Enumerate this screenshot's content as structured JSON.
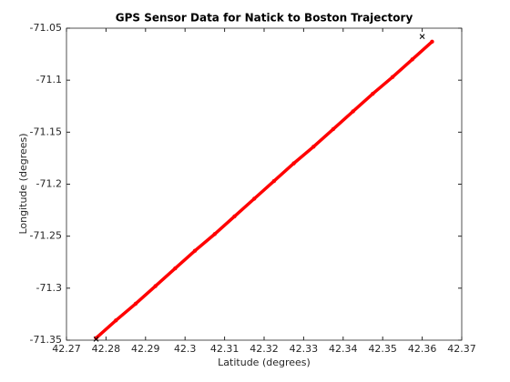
{
  "chart_data": {
    "type": "line",
    "title": "GPS Sensor Data for Natick to Boston Trajectory",
    "xlabel": "Latitude (degrees)",
    "ylabel": "Longitude (degrees)",
    "xlim": [
      42.27,
      42.37
    ],
    "xticks": [
      42.27,
      42.28,
      42.29,
      42.3,
      42.31,
      42.32,
      42.33,
      42.34,
      42.35,
      42.36,
      42.37
    ],
    "ylim": [
      -71.35,
      -71.05
    ],
    "yticks": [
      -71.35,
      -71.3,
      -71.25,
      -71.2,
      -71.15,
      -71.1,
      -71.05
    ],
    "grid": false,
    "series": [
      {
        "color": "#ff0000",
        "marker": ".",
        "connected": true,
        "x": [
          42.2775,
          42.2825,
          42.2875,
          42.2925,
          42.2975,
          42.3025,
          42.3075,
          42.3125,
          42.3175,
          42.3225,
          42.3275,
          42.3325,
          42.3375,
          42.3425,
          42.3475,
          42.3525,
          42.3575,
          42.3625
        ],
        "y": [
          -71.348,
          -71.331,
          -71.315,
          -71.298,
          -71.281,
          -71.264,
          -71.248,
          -71.231,
          -71.214,
          -71.197,
          -71.18,
          -71.164,
          -71.147,
          -71.13,
          -71.113,
          -71.097,
          -71.08,
          -71.063
        ]
      },
      {
        "color": "#000000",
        "marker": "x",
        "connected": false,
        "x": [
          42.36,
          42.2775
        ],
        "y": [
          -71.058,
          -71.349
        ]
      }
    ]
  }
}
